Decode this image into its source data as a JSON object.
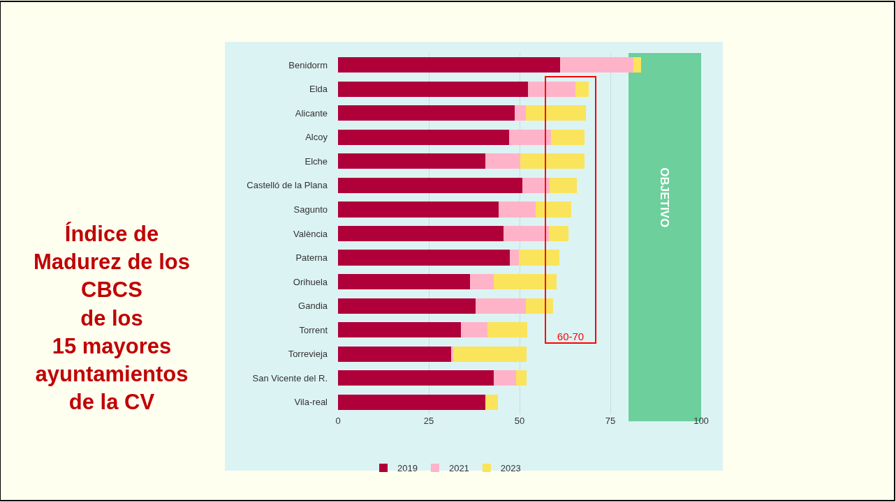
{
  "chart_data": {
    "type": "bar",
    "title": "Índice de\nMadurez de los\nCBCS\nde los\n15 mayores\nayuntamientos\nde la CV",
    "orientation": "horizontal",
    "stacked": true,
    "categories": [
      "Benidorm",
      "Elda",
      "Alicante",
      "Alcoy",
      "Elche",
      "Castelló de la Plana",
      "Sagunto",
      "València",
      "Paterna",
      "Orihuela",
      "Gandia",
      "Torrent",
      "Torrevieja",
      "San Vicente del R.",
      "Vila-real"
    ],
    "series": [
      {
        "name": "2019",
        "color": "#b0003a",
        "values": [
          61.2,
          52.4,
          48.7,
          47.2,
          40.6,
          50.8,
          44.3,
          45.5,
          47.3,
          36.4,
          37.8,
          33.8,
          31.2,
          42.8,
          40.5
        ]
      },
      {
        "name": "2021",
        "color": "#ffb3c8",
        "values": [
          20.2,
          13.0,
          3.0,
          11.5,
          9.6,
          7.4,
          10.1,
          12.6,
          2.6,
          6.5,
          13.9,
          7.4,
          0.5,
          6.2,
          0
        ]
      },
      {
        "name": "2023",
        "color": "#f9e45c",
        "values": [
          2.1,
          3.7,
          16.6,
          9.2,
          17.7,
          7.6,
          9.9,
          5.4,
          11.1,
          17.2,
          7.5,
          11.0,
          20.2,
          2.9,
          3.5
        ]
      }
    ],
    "xlim": [
      0,
      100
    ],
    "xticks": [
      0,
      25,
      50,
      75,
      100
    ],
    "grid": "x",
    "legend": "bottom",
    "bands": [
      {
        "axis": "x",
        "from": 80,
        "to": 100,
        "label": "OBJETIVO",
        "color": "#6ccf9c"
      }
    ],
    "annotations": [
      "60-70"
    ]
  }
}
